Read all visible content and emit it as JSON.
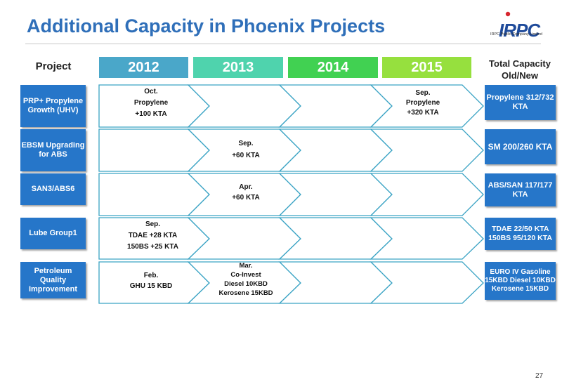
{
  "slide": {
    "title": "Additional Capacity in Phoenix Projects",
    "page_number": "27"
  },
  "logo": {
    "text": "IRPC",
    "subtitle": "IRPC Public Company Limited"
  },
  "headers": {
    "project": "Project",
    "total_line1": "Total Capacity",
    "total_line2": "Old/New"
  },
  "years": [
    {
      "label": "2012",
      "color": "#4aa7c9"
    },
    {
      "label": "2013",
      "color": "#4fd3ad"
    },
    {
      "label": "2014",
      "color": "#41d152"
    },
    {
      "label": "2015",
      "color": "#96e03e"
    }
  ],
  "rows": [
    {
      "project_lines": [
        "PRP+ Propylene",
        "Growth (UHV)"
      ],
      "milestones": [
        {
          "year_index": 0,
          "lines": [
            "Oct.",
            "Propylene",
            "+100 KTA"
          ]
        },
        {
          "year_index": 3,
          "lines": [
            "Sep.",
            "Propylene",
            "+320  KTA"
          ]
        }
      ],
      "total_lines": [
        "Propylene",
        "312/732  KTA"
      ]
    },
    {
      "project_lines": [
        "EBSM",
        "Upgrading for",
        "ABS"
      ],
      "milestones": [
        {
          "year_index": 1,
          "lines": [
            "Sep.",
            "+60 KTA"
          ]
        }
      ],
      "total_lines": [
        "SM",
        "200/260 KTA"
      ]
    },
    {
      "project_lines": [
        "SAN3/ABS6"
      ],
      "milestones": [
        {
          "year_index": 1,
          "lines": [
            "Apr.",
            "+60 KTA"
          ]
        }
      ],
      "total_lines": [
        "ABS/SAN",
        "117/177 KTA"
      ]
    },
    {
      "project_lines": [
        "Lube Group1"
      ],
      "milestones": [
        {
          "year_index": 0,
          "lines": [
            "Sep.",
            "TDAE +28 KTA",
            "150BS +25 KTA"
          ]
        }
      ],
      "total_lines": [
        "TDAE 22/50 KTA",
        "150BS 95/120 KTA"
      ]
    },
    {
      "project_lines": [
        "Petroleum",
        "Quality",
        "Improvement"
      ],
      "milestones": [
        {
          "year_index": 0,
          "lines": [
            "Feb.",
            "GHU 15 KBD"
          ]
        },
        {
          "year_index": 1,
          "lines": [
            "Mar.",
            "Co-Invest",
            "Diesel  10KBD",
            "Kerosene 15KBD"
          ]
        }
      ],
      "total_lines": [
        "EURO IV",
        "Gasoline 15KBD",
        "Diesel  10KBD",
        "Kerosene 15KBD"
      ]
    }
  ],
  "colors": {
    "title": "#2f6fb9",
    "box_blue": "#2676c9",
    "arrow_stroke": "#3aa3c4",
    "logo_red": "#d7262e",
    "logo_blue": "#1e4a9a"
  }
}
